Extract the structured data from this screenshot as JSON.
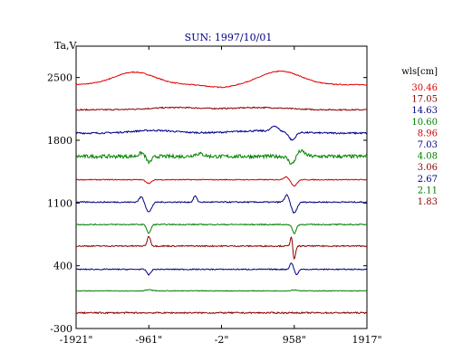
{
  "chart_data": {
    "type": "line",
    "title": "SUN: 1997/10/01",
    "ylabel": "Ta,V",
    "xlim": [
      -1921,
      1917
    ],
    "ylim": [
      -300,
      2850
    ],
    "x_ticks": [
      -1921,
      -961,
      -2,
      958,
      1917
    ],
    "x_tick_labels": [
      "-1921\"",
      "-961\"",
      "-2\"",
      "958\"",
      "1917\""
    ],
    "y_ticks": [
      2500,
      1800,
      1100,
      400,
      -300
    ],
    "y_tick_labels": [
      "2500",
      "1800",
      "1100",
      "400",
      "-300"
    ],
    "grid": false,
    "legend": {
      "title": "wls[cm]",
      "placement": "right"
    },
    "series": [
      {
        "name": "30.46",
        "color": "#e00000",
        "offset": 2420
      },
      {
        "name": "17.05",
        "color": "#8b0000",
        "offset": 2140
      },
      {
        "name": "14.63",
        "color": "#00008b",
        "offset": 1880
      },
      {
        "name": "10.60",
        "color": "#008000",
        "offset": 1620
      },
      {
        "name": "8.96",
        "color": "#cc0000",
        "offset": 1360
      },
      {
        "name": "7.03",
        "color": "#000080",
        "offset": 1110
      },
      {
        "name": "4.08",
        "color": "#008000",
        "offset": 860
      },
      {
        "name": "3.06",
        "color": "#8b0000",
        "offset": 620
      },
      {
        "name": "2.67",
        "color": "#000080",
        "offset": 360
      },
      {
        "name": "2.11",
        "color": "#008000",
        "offset": 120
      },
      {
        "name": "1.83",
        "color": "#8b0000",
        "offset": -125
      }
    ]
  }
}
